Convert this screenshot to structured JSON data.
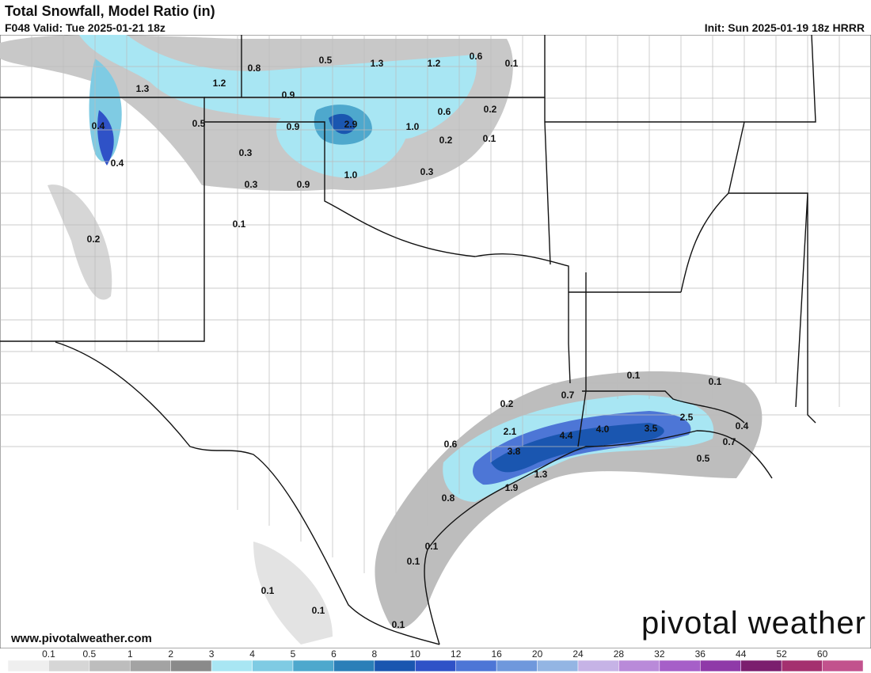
{
  "header": {
    "title": "Total Snowfall, Model Ratio (in)",
    "valid": "F048 Valid: Tue 2025-01-21 18z",
    "init": "Init: Sun 2025-01-19 18z HRRR"
  },
  "map": {
    "labels": [
      "0.8",
      "0.5",
      "1.3",
      "1.2",
      "0.6",
      "0.1",
      "1.2",
      "1.3",
      "0.9",
      "0.6",
      "0.2",
      "0.4",
      "0.5",
      "0.9",
      "2.9",
      "1.0",
      "0.2",
      "0.1",
      "0.4",
      "0.3",
      "1.0",
      "0.3",
      "0.3",
      "0.9",
      "0.1",
      "0.2",
      "0.1",
      "0.1",
      "0.7",
      "0.2",
      "2.5",
      "0.4",
      "2.1",
      "4.0",
      "3.5",
      "4.4",
      "0.7",
      "0.6",
      "3.8",
      "0.5",
      "1.3",
      "1.9",
      "0.8",
      "0.1",
      "0.1",
      "0.1",
      "0.1",
      "0.1"
    ]
  },
  "footer": {
    "website": "www.pivotalweather.com",
    "logo": "pivotal weather"
  },
  "legend": {
    "ticks": [
      "0.1",
      "0.5",
      "1",
      "2",
      "3",
      "4",
      "5",
      "6",
      "8",
      "10",
      "12",
      "16",
      "20",
      "24",
      "28",
      "32",
      "36",
      "44",
      "52",
      "60"
    ],
    "colors": [
      "#efefef",
      "#d6d6d6",
      "#bdbdbd",
      "#a3a3a3",
      "#8a8a8a",
      "#a8e6f3",
      "#7fcbe3",
      "#4ea8cd",
      "#2b7fb8",
      "#1a56b0",
      "#2f52c7",
      "#4d76d6",
      "#6f98dc",
      "#93b5e3",
      "#c6b3e6",
      "#b98ad9",
      "#a65fc8",
      "#8f3aa8",
      "#7b1e6e",
      "#a4306f",
      "#c2528d"
    ]
  }
}
